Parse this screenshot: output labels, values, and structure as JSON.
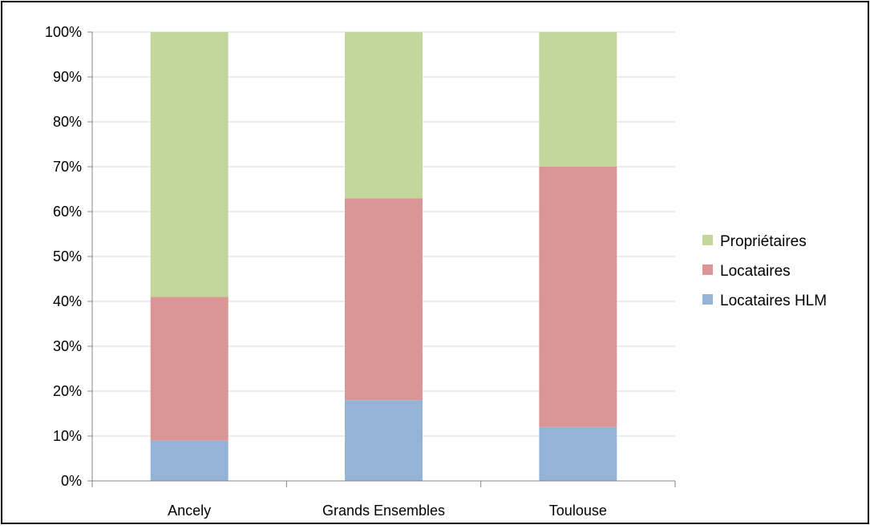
{
  "chart_data": {
    "type": "bar",
    "stacked": true,
    "percent": true,
    "categories": [
      "Ancely",
      "Grands Ensembles",
      "Toulouse"
    ],
    "series": [
      {
        "name": "Locataires HLM",
        "values": [
          9,
          18,
          12
        ],
        "color": "#95B3D7"
      },
      {
        "name": "Locataires",
        "values": [
          32,
          45,
          58
        ],
        "color": "#D99694"
      },
      {
        "name": "Propriétaires",
        "values": [
          59,
          37,
          30
        ],
        "color": "#C3D69B"
      }
    ],
    "y_ticks": [
      "0%",
      "10%",
      "20%",
      "30%",
      "40%",
      "50%",
      "60%",
      "70%",
      "80%",
      "90%",
      "100%"
    ],
    "ylim": [
      0,
      100
    ],
    "grid": true,
    "legend_position": "right",
    "legend_order": [
      "Propriétaires",
      "Locataires",
      "Locataires HLM"
    ],
    "title": "",
    "xlabel": "",
    "ylabel": ""
  }
}
